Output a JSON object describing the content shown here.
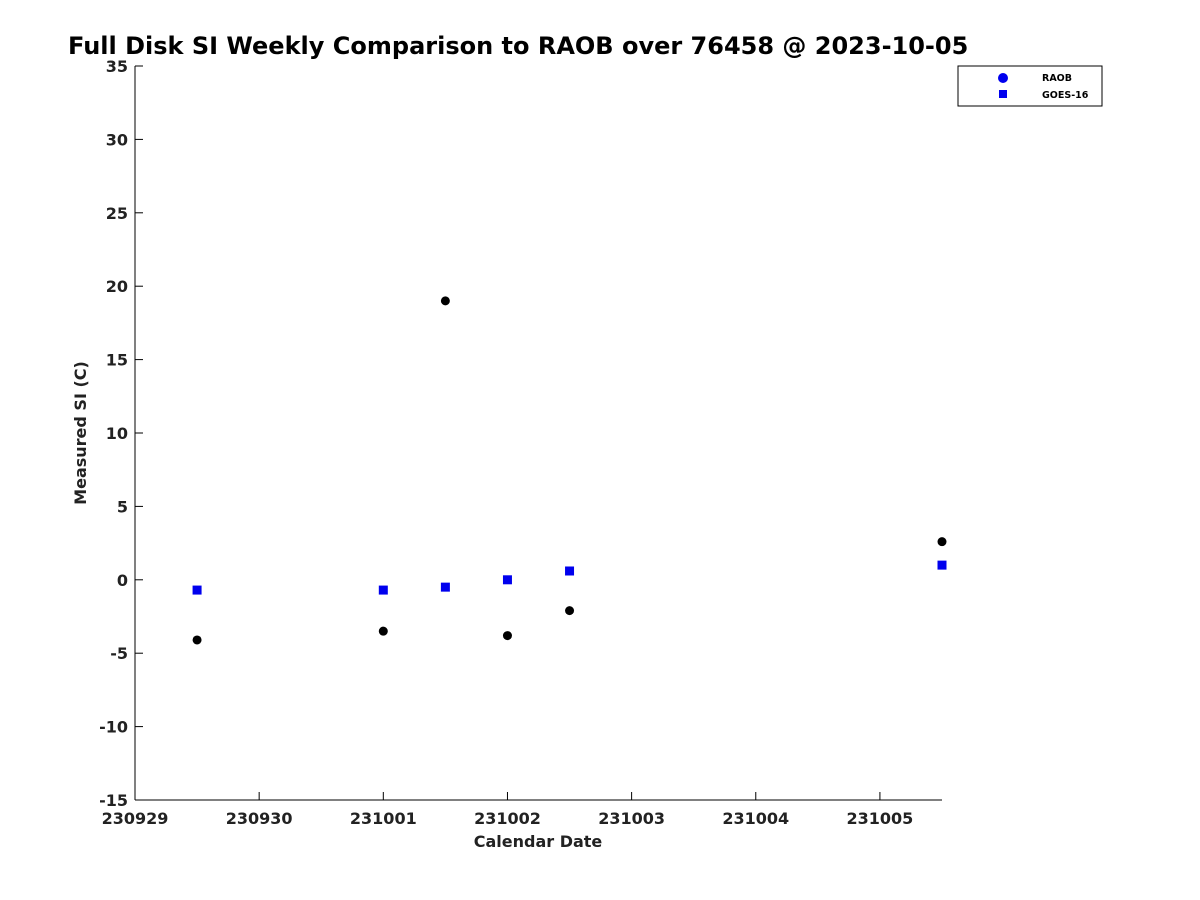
{
  "chart_data": {
    "type": "scatter",
    "title": "Full Disk SI Weekly Comparison to RAOB over 76458 @ 2023-10-05",
    "xlabel": "Calendar Date",
    "ylabel": "Measured SI (C)",
    "x_ticks": [
      "230929",
      "230930",
      "231001",
      "231002",
      "231003",
      "231004",
      "231005"
    ],
    "x_tick_values": [
      0,
      1,
      2,
      3,
      4,
      5,
      6
    ],
    "xlim": [
      0,
      6.5
    ],
    "ylim": [
      -15,
      35
    ],
    "y_ticks": [
      -15,
      -10,
      -5,
      0,
      5,
      10,
      15,
      20,
      25,
      30,
      35
    ],
    "grid": false,
    "legend_position": "top-right",
    "series": [
      {
        "name": "RAOB",
        "marker": "circle",
        "legend_color": "#0000ee",
        "color": "#000000",
        "x": [
          0.5,
          2.0,
          2.5,
          3.0,
          3.5,
          6.5
        ],
        "y": [
          -4.1,
          -3.5,
          19.0,
          -3.8,
          -2.1,
          2.6
        ]
      },
      {
        "name": "GOES-16",
        "marker": "square",
        "color": "#0000ee",
        "x": [
          0.5,
          2.0,
          2.5,
          3.0,
          3.5,
          6.5
        ],
        "y": [
          -0.7,
          -0.7,
          -0.5,
          0.0,
          0.6,
          1.0
        ]
      }
    ]
  }
}
